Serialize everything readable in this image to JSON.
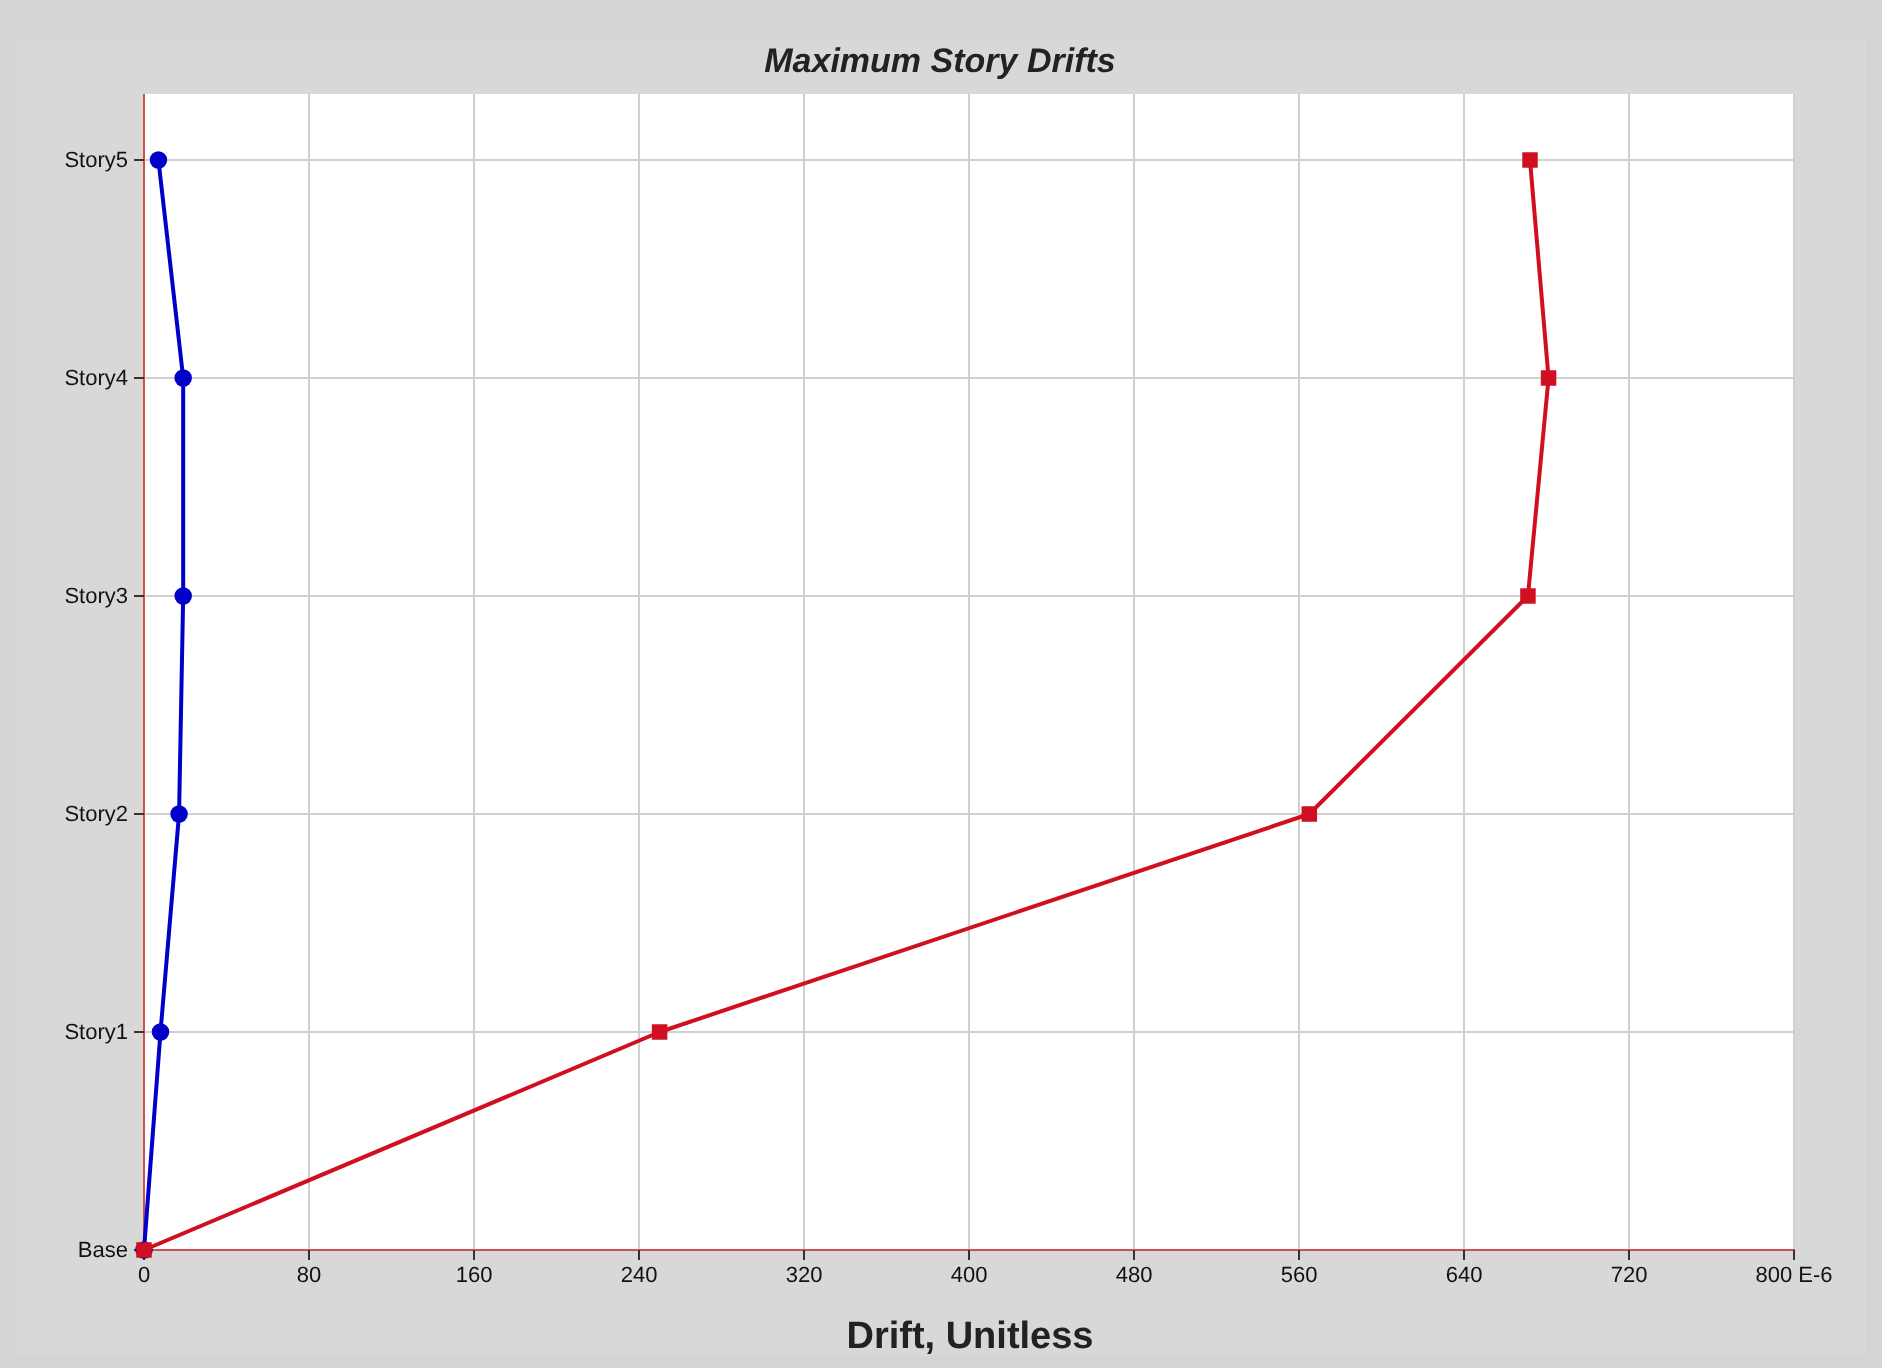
{
  "chart_data": {
    "type": "line",
    "orientation": "horizontal",
    "title": "Maximum Story Drifts",
    "xlabel": "Drift, Unitless",
    "categories": [
      "Story5",
      "Story4",
      "Story3",
      "Story2",
      "Story1",
      "Base"
    ],
    "xlim": [
      0,
      800
    ],
    "xticks": [
      0,
      80,
      160,
      240,
      320,
      400,
      480,
      560,
      640,
      720,
      {
        "value": 800,
        "label": "800 E-6"
      }
    ],
    "grid": true,
    "line_style": "solid",
    "series": [
      {
        "color": "#0000c8",
        "marker": "circle",
        "values": [
          7,
          19,
          19,
          17,
          8,
          0
        ]
      },
      {
        "color": "#d01020",
        "marker": "square",
        "values": [
          672,
          681,
          671,
          565,
          250,
          0
        ]
      }
    ]
  }
}
